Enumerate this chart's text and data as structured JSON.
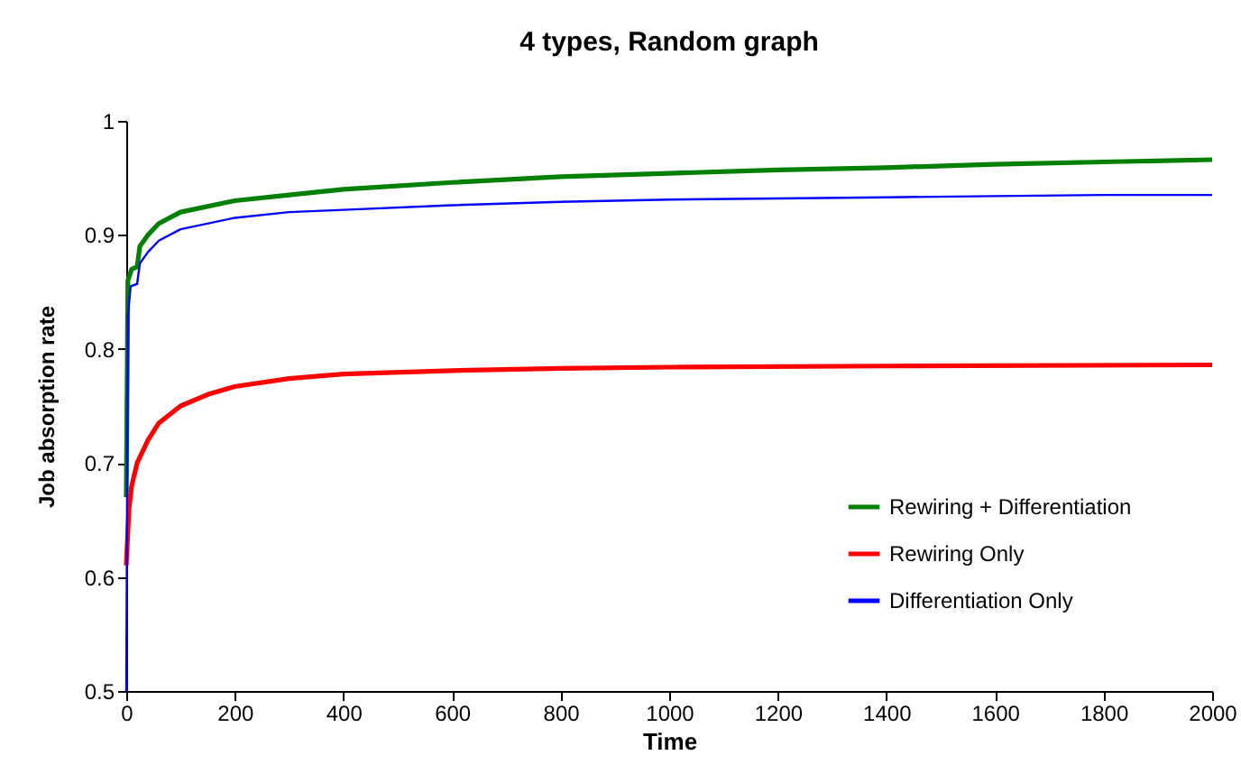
{
  "chart_data": {
    "type": "line",
    "title": "4 types, Random graph",
    "xlabel": "Time",
    "ylabel": "Job absorption rate",
    "xlim": [
      0,
      2000
    ],
    "xticks": [
      0,
      200,
      400,
      600,
      800,
      1000,
      1200,
      1400,
      1600,
      1800,
      2000
    ],
    "ylim": [
      0.5,
      1
    ],
    "yticks": [
      0.5,
      0.6,
      0.7,
      0.8,
      0.9,
      1
    ],
    "grid": false,
    "legend": "bottom right",
    "marker": "none",
    "line_style": "solid",
    "series": [
      {
        "name": "Rewiring + Differentiation",
        "color": "#008000",
        "x": [
          0,
          3,
          10,
          20,
          25,
          40,
          60,
          100,
          200,
          300,
          400,
          600,
          800,
          1000,
          1200,
          1400,
          1600,
          1800,
          2000
        ],
        "values": [
          0.67,
          0.86,
          0.87,
          0.872,
          0.89,
          0.9,
          0.91,
          0.92,
          0.93,
          0.935,
          0.94,
          0.946,
          0.951,
          0.954,
          0.957,
          0.959,
          0.962,
          0.964,
          0.966
        ]
      },
      {
        "name": "Rewiring Only",
        "color": "#ff0000",
        "x": [
          0,
          5,
          10,
          20,
          40,
          60,
          100,
          150,
          200,
          300,
          400,
          600,
          800,
          1000,
          1400,
          2000
        ],
        "values": [
          0.61,
          0.66,
          0.68,
          0.7,
          0.72,
          0.735,
          0.75,
          0.76,
          0.767,
          0.774,
          0.778,
          0.781,
          0.783,
          0.784,
          0.785,
          0.786
        ]
      },
      {
        "name": "Differentiation Only",
        "color": "#0000ff",
        "x": [
          0,
          3,
          8,
          20,
          25,
          40,
          60,
          100,
          200,
          300,
          400,
          600,
          800,
          1000,
          1200,
          1400,
          1600,
          1800,
          2000
        ],
        "values": [
          0.5,
          0.83,
          0.855,
          0.857,
          0.875,
          0.885,
          0.895,
          0.905,
          0.915,
          0.92,
          0.922,
          0.926,
          0.929,
          0.931,
          0.932,
          0.933,
          0.934,
          0.935,
          0.935
        ]
      }
    ]
  }
}
